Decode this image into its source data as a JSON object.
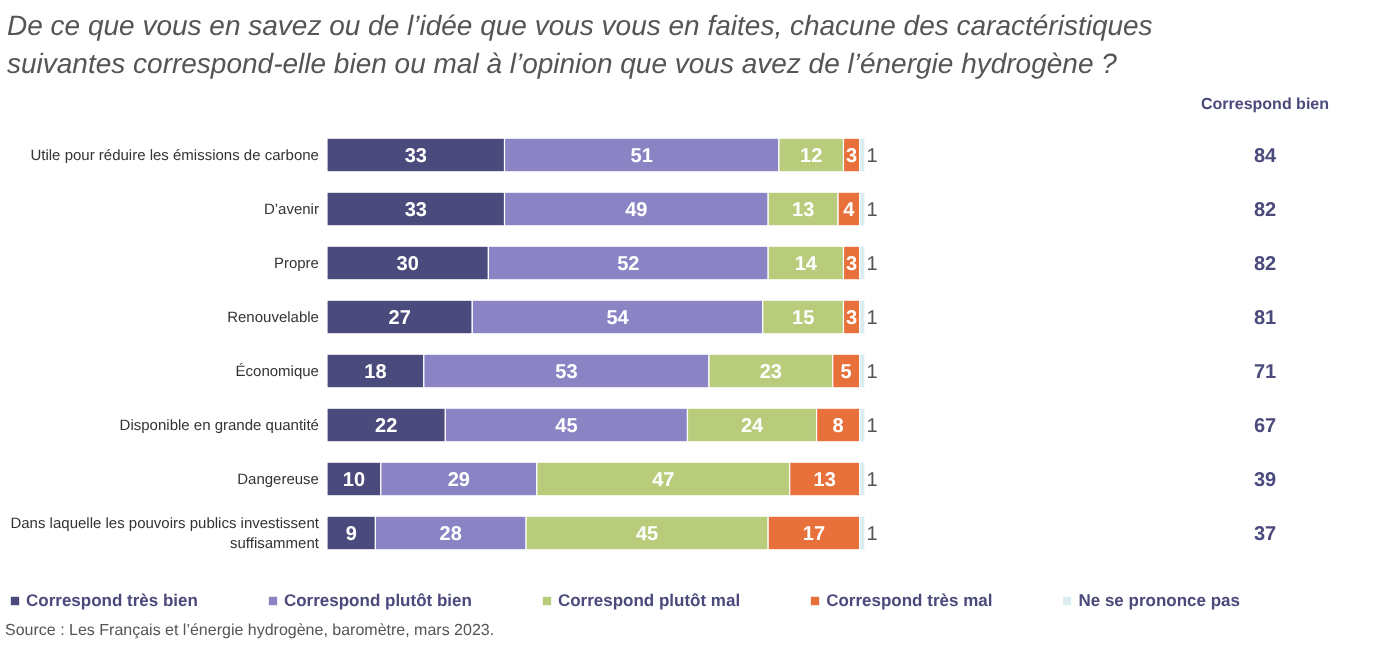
{
  "chart_data": {
    "type": "bar",
    "orientation": "horizontal",
    "stacked": true,
    "data_labels": true,
    "legend": "bottom",
    "title": "De ce que vous en savez ou de l’idée que vous vous en faites, chacune des caractéristiques suivantes correspond-elle bien ou mal à l’opinion que vous avez de l’énergie hydrogène ?",
    "categories": [
      "Utile pour réduire les émissions de carbone",
      "D’avenir",
      "Propre",
      "Renouvelable",
      "Économique",
      "Disponible en grande quantité",
      "Dangereuse",
      "Dans laquelle les pouvoirs publics investissent suffisamment"
    ],
    "series": [
      {
        "name": "Correspond très bien",
        "color": "#4b4a7c",
        "values": [
          33,
          33,
          30,
          27,
          18,
          22,
          10,
          9
        ]
      },
      {
        "name": "Correspond plutôt bien",
        "color": "#8a83c4",
        "values": [
          51,
          49,
          52,
          54,
          53,
          45,
          29,
          28
        ]
      },
      {
        "name": "Correspond plutôt mal",
        "color": "#b9cc7c",
        "values": [
          12,
          13,
          14,
          15,
          23,
          24,
          47,
          45
        ]
      },
      {
        "name": "Correspond très mal",
        "color": "#e8703a",
        "values": [
          3,
          4,
          3,
          3,
          5,
          8,
          13,
          17
        ]
      },
      {
        "name": "Ne se prononce pas",
        "color": "#dcedf2",
        "values": [
          1,
          1,
          1,
          1,
          1,
          1,
          1,
          1
        ]
      }
    ],
    "annotations": [
      "Correspond bien",
      "84",
      "82",
      "82",
      "81",
      "71",
      "67",
      "39",
      "37",
      "Source : Les Français et l’énergie hydrogène, baromètre, mars 2023."
    ]
  }
}
